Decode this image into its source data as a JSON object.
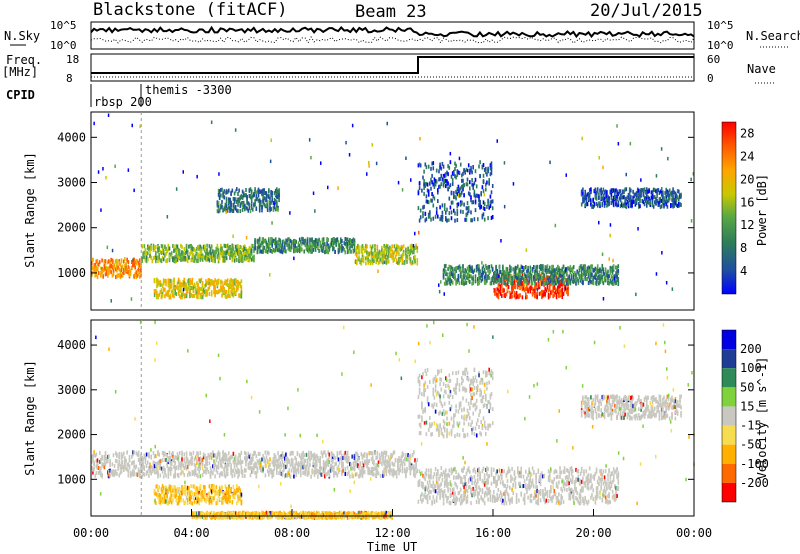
{
  "header": {
    "station": "Blackstone (fitACF)",
    "beam": "Beam 23",
    "date": "20/Jul/2015"
  },
  "top_panels": {
    "nsky_label": "N.Sky",
    "nsky_ticks": [
      "10^5",
      "10^0"
    ],
    "nsearch_label": "N.Search",
    "freq_label": "Freq.",
    "freq_unit": "[MHz]",
    "freq_ticks": [
      "18",
      "8"
    ],
    "nave_label": "Nave",
    "nave_ticks": [
      "60",
      "0"
    ],
    "cpid_label": "CPID",
    "cpid_entries": [
      "rbsp 200",
      "themis -3300"
    ]
  },
  "colors": {
    "power_scale": [
      "#0000ff",
      "#1f4fa0",
      "#2e7d5a",
      "#5aa845",
      "#c8c800",
      "#ffa500",
      "#ff5a00",
      "#ff0000"
    ],
    "velocity_scale": [
      "#ff0000",
      "#ff6a00",
      "#ffb000",
      "#f5dc50",
      "#c8c8c0",
      "#7fd23c",
      "#2e8b57",
      "#1e3c96",
      "#0000e0"
    ]
  },
  "chart_data": [
    {
      "type": "heatmap",
      "title": "Power",
      "xlabel": "Time UT",
      "ylabel": "Slant Range [km]",
      "x_ticks": [
        "00:00",
        "04:00",
        "08:00",
        "12:00",
        "16:00",
        "20:00",
        "00:00"
      ],
      "y_ticks": [
        "1000",
        "2000",
        "3000",
        "4000"
      ],
      "ylim": [
        180,
        4560
      ],
      "colorbar_label": "Power [dB]",
      "colorbar_ticks": [
        "4",
        "8",
        "12",
        "16",
        "20",
        "24",
        "28"
      ],
      "regions": [
        {
          "t": [
            0.0,
            2.0
          ],
          "range": [
            950,
            1350
          ],
          "value": 22
        },
        {
          "t": [
            2.0,
            6.5
          ],
          "range": [
            1300,
            1650
          ],
          "value": 14
        },
        {
          "t": [
            6.5,
            10.5
          ],
          "range": [
            1500,
            1800
          ],
          "value": 10
        },
        {
          "t": [
            10.5,
            13.0
          ],
          "range": [
            1250,
            1650
          ],
          "value": 16
        },
        {
          "t": [
            5.0,
            7.5
          ],
          "range": [
            2400,
            2900
          ],
          "value": 8
        },
        {
          "t": [
            13.0,
            16.0
          ],
          "range": [
            2200,
            3500
          ],
          "value": 6
        },
        {
          "t": [
            16.0,
            19.0
          ],
          "range": [
            500,
            1000
          ],
          "value": 26
        },
        {
          "t": [
            14.0,
            21.0
          ],
          "range": [
            800,
            1200
          ],
          "value": 10
        },
        {
          "t": [
            2.5,
            6.0
          ],
          "range": [
            500,
            900
          ],
          "value": 18
        },
        {
          "t": [
            19.5,
            23.5
          ],
          "range": [
            2500,
            2900
          ],
          "value": 6
        }
      ]
    },
    {
      "type": "heatmap",
      "title": "Velocity",
      "xlabel": "Time UT",
      "ylabel": "Slant Range [km]",
      "x_ticks": [
        "00:00",
        "04:00",
        "08:00",
        "12:00",
        "16:00",
        "20:00",
        "00:00"
      ],
      "y_ticks": [
        "1000",
        "2000",
        "3000",
        "4000"
      ],
      "ylim": [
        180,
        4560
      ],
      "colorbar_label": "Velocity [m s^-1]",
      "colorbar_ticks": [
        "200",
        "100",
        "50",
        "15",
        "-15",
        "-50",
        "-100",
        "-200"
      ],
      "regions": [
        {
          "t": [
            0.0,
            13.0
          ],
          "range": [
            1100,
            1650
          ],
          "value": 0
        },
        {
          "t": [
            2.5,
            6.0
          ],
          "range": [
            500,
            900
          ],
          "value": -20
        },
        {
          "t": [
            13.0,
            21.0
          ],
          "range": [
            500,
            1300
          ],
          "value": 0
        },
        {
          "t": [
            13.0,
            16.0
          ],
          "range": [
            2000,
            3500
          ],
          "value": 0
        },
        {
          "t": [
            4.0,
            12.0
          ],
          "range": [
            180,
            300
          ],
          "value": -60
        },
        {
          "t": [
            19.5,
            23.5
          ],
          "range": [
            2400,
            2900
          ],
          "value": 0
        }
      ]
    }
  ]
}
